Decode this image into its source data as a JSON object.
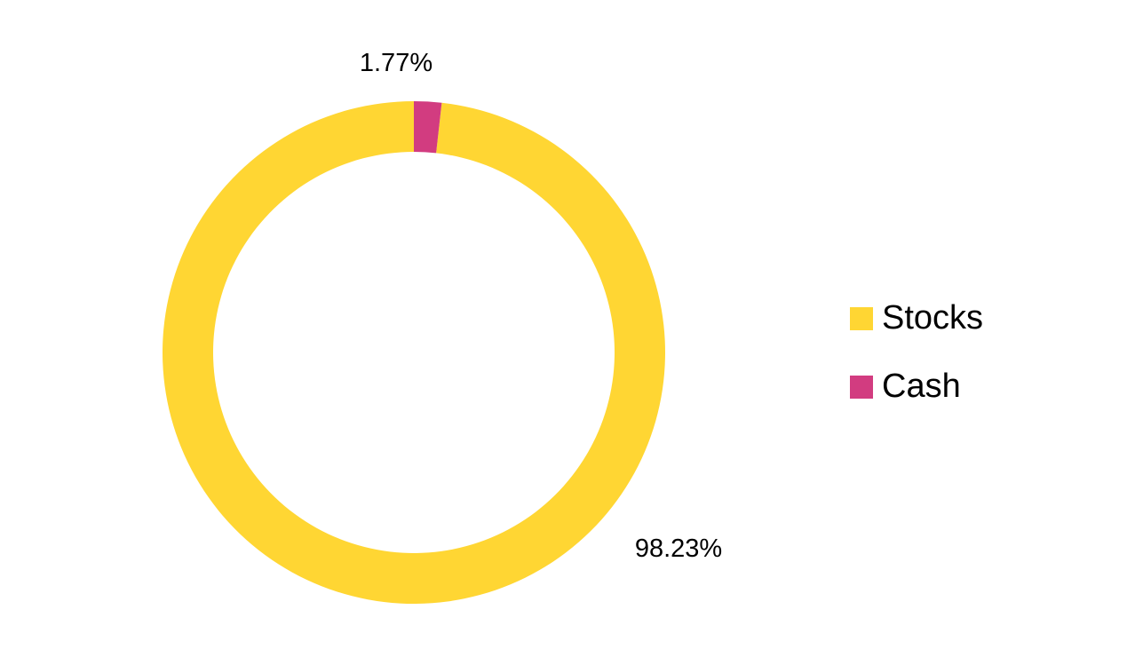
{
  "chart_data": {
    "type": "pie",
    "variant": "donut",
    "title": "",
    "categories": [
      "Stocks",
      "Cash"
    ],
    "values": [
      98.23,
      1.77
    ],
    "data_labels": [
      "98.23%",
      "1.77%"
    ],
    "colors": [
      "#FFD633",
      "#D23C80"
    ],
    "legend": {
      "placement": "right",
      "entries": [
        "Stocks",
        "Cash"
      ]
    },
    "start_angle_deg": 0,
    "direction": "clockwise"
  }
}
